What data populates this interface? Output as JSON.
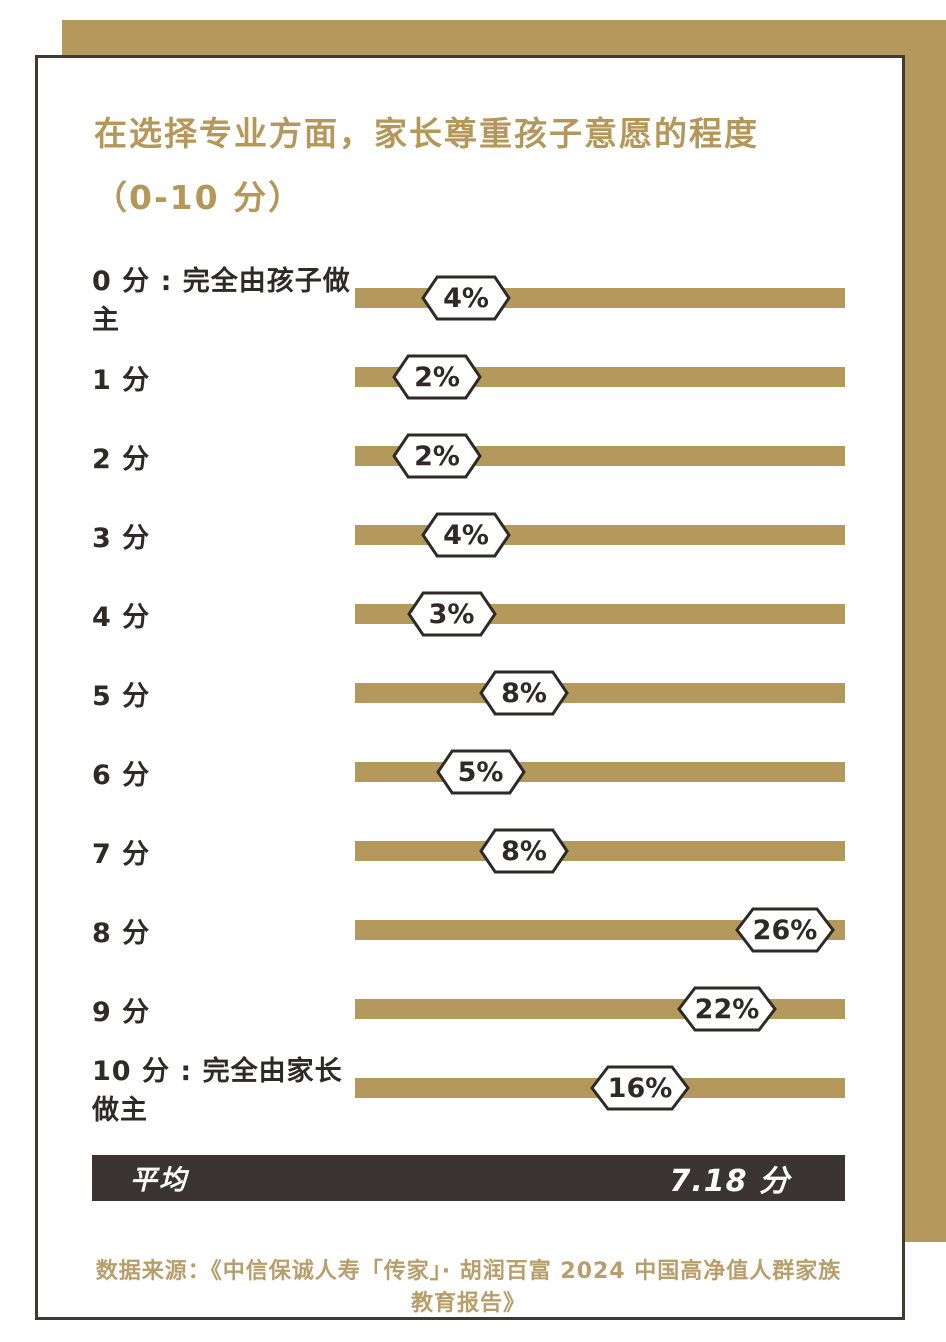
{
  "accent_color": "#b5985c",
  "dark_color": "#2e2a26",
  "title_line1": "在选择专业方面，家长尊重孩子意愿的程度",
  "title_line2": "（0-10 分）",
  "average": {
    "label": "平均",
    "value": "7.18 分"
  },
  "source": "数据来源：《中信保诚人寿「传家」· 胡润百富 2024 中国高净值人群家族教育报告》",
  "chart_data": {
    "type": "bar",
    "title": "在选择专业方面，家长尊重孩子意愿的程度（0-10 分）",
    "categories": [
      "0 分 : 完全由孩子做主",
      "1 分",
      "2 分",
      "3 分",
      "4 分",
      "5 分",
      "6 分",
      "7 分",
      "8 分",
      "9 分",
      "10 分 : 完全由家长做主"
    ],
    "values": [
      4,
      2,
      2,
      4,
      3,
      8,
      5,
      8,
      26,
      22,
      16
    ],
    "unit": "%",
    "average_score": 7.18,
    "xlim": [
      0,
      30
    ],
    "legend": "none",
    "grid": "off",
    "bar_color": "#b5985c",
    "badge_style": "white hexagon with dark outline, position along bar proportional to value"
  }
}
